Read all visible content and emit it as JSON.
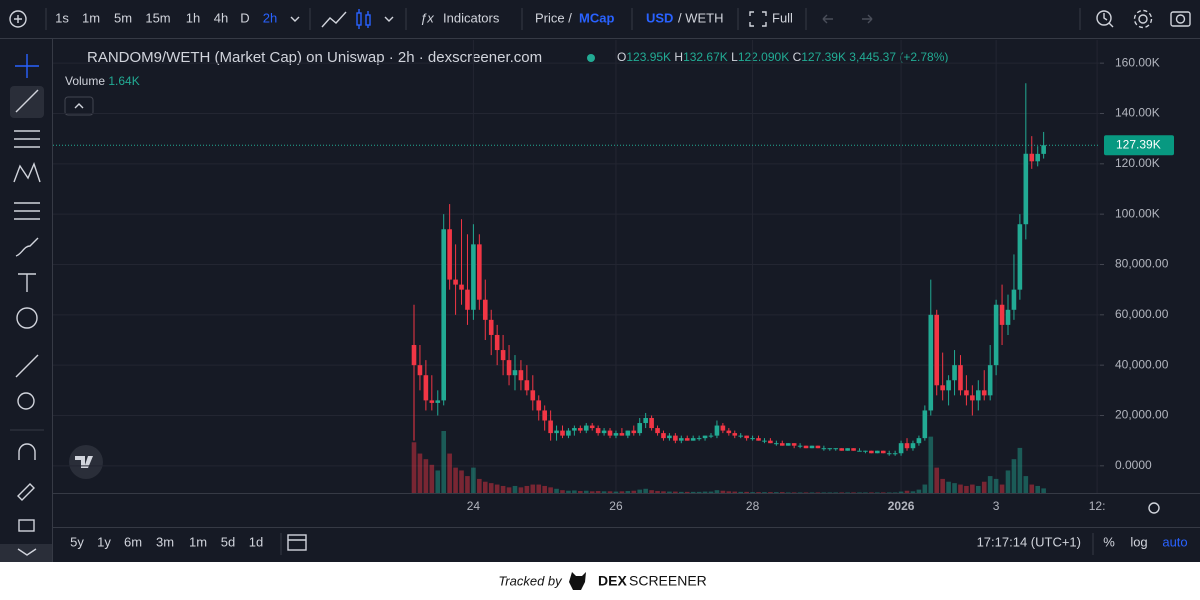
{
  "toolbar": {
    "intervals": [
      "1s",
      "1m",
      "5m",
      "15m",
      "1h",
      "4h",
      "D",
      "2h"
    ],
    "indicators": "Indicators",
    "price": "Price /",
    "mcap": "MCap",
    "usd": "USD",
    "weth": "/ WETH",
    "full": "Full"
  },
  "legend": {
    "title": "RANDOM9/WETH (Market Cap) on Uniswap · 2h · dexscreener.com",
    "o_label": "O",
    "o": "123.95K",
    "h_label": "H",
    "h": "132.67K",
    "l_label": "L",
    "l": "122.090K",
    "c_label": "C",
    "c": "127.39K",
    "change": "3,445.37 (+2.78%)",
    "volume_label": "Volume",
    "volume": "1.64K"
  },
  "chart_data": {
    "type": "candlestick",
    "categories": [
      null,
      null,
      null,
      null,
      null,
      null,
      null,
      null,
      null,
      null,
      "24",
      null,
      null,
      null,
      null,
      null,
      null,
      null,
      null,
      null,
      null,
      null,
      null,
      null,
      null,
      null,
      null,
      null,
      null,
      null,
      null,
      null,
      null,
      null,
      "26",
      null,
      null,
      null,
      null,
      null,
      null,
      null,
      null,
      null,
      null,
      null,
      null,
      null,
      null,
      null,
      null,
      null,
      null,
      null,
      null,
      null,
      null,
      "28",
      null,
      null,
      null,
      null,
      null,
      null,
      null,
      null,
      null,
      null,
      null,
      null,
      null,
      null,
      null,
      null,
      null,
      null,
      null,
      null,
      null,
      null,
      null,
      null,
      "2026",
      null,
      null,
      null,
      null,
      null,
      null,
      null,
      null,
      null,
      null,
      null,
      null,
      null,
      null,
      null,
      "3",
      null,
      null,
      null,
      null,
      null,
      null,
      null,
      null,
      null,
      null,
      null,
      null,
      null,
      null,
      null,
      null,
      "12:"
    ],
    "open": [
      48000,
      40000,
      36000,
      26000,
      25000,
      26000,
      94000,
      74000,
      72000,
      70000,
      62000,
      88000,
      66000,
      58000,
      52000,
      46000,
      42000,
      36000,
      38000,
      34000,
      30000,
      26000,
      22000,
      18000,
      13000,
      14000,
      12000,
      14000,
      15000,
      14000,
      16000,
      15000,
      13000,
      14000,
      12000,
      13000,
      12000,
      14000,
      13000,
      17000,
      19000,
      15000,
      13000,
      11000,
      12000,
      10000,
      11000,
      10000,
      11000,
      11000,
      12000,
      12000,
      16000,
      14000,
      13000,
      12000,
      12000,
      11000,
      11000,
      10000,
      10000,
      9000,
      9000,
      8000,
      9000,
      8000,
      8000,
      7000,
      8000,
      7000,
      7000,
      7000,
      7000,
      6000,
      7000,
      6000,
      6000,
      6000,
      5000,
      6000,
      5000,
      5000,
      5000,
      9000,
      7000,
      9000,
      11000,
      22000,
      60000,
      32000,
      30000,
      34000,
      40000,
      30000,
      28000,
      26000,
      30000,
      28000,
      40000,
      64000,
      56000,
      62000,
      70000,
      96000,
      124000,
      121000,
      123950,
      null,
      null,
      null,
      null,
      null,
      null,
      null,
      null,
      null
    ],
    "high": [
      64000,
      48000,
      42000,
      36000,
      30000,
      100000,
      104000,
      88000,
      98000,
      92000,
      96000,
      92000,
      74000,
      62000,
      56000,
      52000,
      48000,
      44000,
      42000,
      40000,
      36000,
      28000,
      24000,
      22000,
      16000,
      16000,
      15000,
      16000,
      16000,
      17000,
      17000,
      16000,
      15000,
      15000,
      14000,
      15000,
      14000,
      16000,
      19000,
      21000,
      20000,
      16000,
      14000,
      13000,
      13000,
      12000,
      12000,
      12000,
      12000,
      12000,
      13000,
      18000,
      17000,
      15000,
      14000,
      13000,
      12000,
      12000,
      12000,
      11000,
      11000,
      10000,
      10000,
      9000,
      9000,
      9000,
      8000,
      8000,
      8000,
      8000,
      7000,
      7000,
      7000,
      7000,
      7000,
      7000,
      6000,
      6000,
      6000,
      6000,
      6000,
      6000,
      10000,
      11000,
      10000,
      12000,
      24000,
      74000,
      62000,
      45000,
      36000,
      46000,
      44000,
      36000,
      32000,
      34000,
      38000,
      48000,
      66000,
      72000,
      68000,
      84000,
      100000,
      152000,
      131000,
      127000,
      132670,
      null,
      null,
      null,
      null,
      null,
      null,
      null,
      null,
      null
    ],
    "low": [
      10000,
      30000,
      22000,
      22000,
      20000,
      24000,
      70000,
      60000,
      64000,
      56000,
      58000,
      62000,
      50000,
      44000,
      40000,
      36000,
      32000,
      30000,
      30000,
      28000,
      22000,
      18000,
      14000,
      10000,
      10000,
      11000,
      11000,
      12000,
      13000,
      13000,
      14000,
      12000,
      12000,
      11000,
      11000,
      12000,
      11000,
      12000,
      12000,
      15000,
      14000,
      12000,
      10000,
      10000,
      9000,
      9000,
      10000,
      10000,
      10000,
      10000,
      11000,
      11000,
      13000,
      12000,
      11000,
      11000,
      10000,
      10000,
      10000,
      9000,
      9000,
      8000,
      8000,
      8000,
      7000,
      7000,
      7000,
      7000,
      7000,
      6000,
      6000,
      6000,
      6000,
      6000,
      6000,
      6000,
      5000,
      5000,
      5000,
      5000,
      4000,
      4000,
      4000,
      6000,
      6000,
      8000,
      10000,
      20000,
      28000,
      26000,
      24000,
      28000,
      28000,
      24000,
      20000,
      22000,
      26000,
      26000,
      36000,
      48000,
      52000,
      58000,
      66000,
      90000,
      118000,
      119000,
      122090,
      null,
      null,
      null,
      null,
      null,
      null,
      null,
      null,
      null
    ],
    "close": [
      40000,
      36000,
      26000,
      25000,
      26000,
      94000,
      74000,
      72000,
      70000,
      62000,
      88000,
      66000,
      58000,
      52000,
      46000,
      42000,
      36000,
      38000,
      34000,
      30000,
      26000,
      22000,
      18000,
      13000,
      14000,
      12000,
      14000,
      15000,
      14000,
      16000,
      15000,
      13000,
      14000,
      12000,
      13000,
      12000,
      14000,
      13000,
      17000,
      19000,
      15000,
      13000,
      11000,
      12000,
      10000,
      11000,
      10000,
      11000,
      11000,
      12000,
      12000,
      16000,
      14000,
      13000,
      12000,
      12000,
      11000,
      11000,
      10000,
      10000,
      9000,
      9000,
      8000,
      9000,
      8000,
      8000,
      7000,
      8000,
      7000,
      7000,
      7000,
      7000,
      6000,
      7000,
      6000,
      6000,
      6000,
      5000,
      6000,
      5000,
      5000,
      5000,
      9000,
      7000,
      9000,
      11000,
      22000,
      60000,
      32000,
      30000,
      34000,
      40000,
      30000,
      28000,
      26000,
      30000,
      28000,
      40000,
      64000,
      56000,
      62000,
      70000,
      96000,
      124000,
      121000,
      123950,
      127390,
      null,
      null,
      null,
      null,
      null,
      null,
      null,
      null,
      null
    ],
    "volume": [
      18000,
      14000,
      12000,
      10000,
      8000,
      22000,
      14000,
      9000,
      8000,
      6000,
      9000,
      5000,
      4000,
      3500,
      3000,
      2500,
      2000,
      2500,
      2000,
      2500,
      3000,
      3000,
      2500,
      2000,
      1500,
      1000,
      800,
      900,
      700,
      800,
      600,
      700,
      600,
      600,
      500,
      600,
      700,
      800,
      1200,
      1500,
      1000,
      700,
      600,
      500,
      500,
      400,
      400,
      400,
      400,
      500,
      500,
      1000,
      800,
      600,
      500,
      400,
      400,
      300,
      300,
      300,
      300,
      300,
      300,
      200,
      200,
      200,
      200,
      200,
      200,
      200,
      200,
      200,
      200,
      200,
      200,
      200,
      200,
      200,
      200,
      200,
      200,
      200,
      500,
      800,
      600,
      1200,
      3000,
      20000,
      9000,
      5000,
      4000,
      3500,
      3000,
      2500,
      3000,
      2500,
      4000,
      6000,
      5000,
      3000,
      8000,
      12000,
      16000,
      6000,
      3000,
      2500,
      1640,
      null,
      null,
      null,
      null,
      null,
      null,
      null,
      null,
      null
    ],
    "last_label": "127.39K",
    "ylim": [
      -10800,
      169200
    ],
    "yticks": [
      {
        "value": 0,
        "label": "0.0000"
      },
      {
        "value": 20000,
        "label": "20,000.00"
      },
      {
        "value": 40000,
        "label": "40,000.00"
      },
      {
        "value": 60000,
        "label": "60,000.00"
      },
      {
        "value": 80000,
        "label": "80,000.00"
      },
      {
        "value": 100000,
        "label": "100.00K"
      },
      {
        "value": 120000,
        "label": "120.00K"
      },
      {
        "value": 140000,
        "label": "140.00K"
      },
      {
        "value": 160000,
        "label": "160.00K"
      }
    ],
    "grid": true,
    "up_color": "#22ab94",
    "down_color": "#f23645"
  },
  "timeframes": [
    "5y",
    "1y",
    "6m",
    "3m",
    "1m",
    "5d",
    "1d"
  ],
  "clock": "17:17:14 (UTC+1)",
  "scale_options": [
    "%",
    "log",
    "auto"
  ],
  "footer": {
    "tracked": "Tracked by",
    "brand_a": "DEX",
    "brand_b": "SCREENER"
  }
}
